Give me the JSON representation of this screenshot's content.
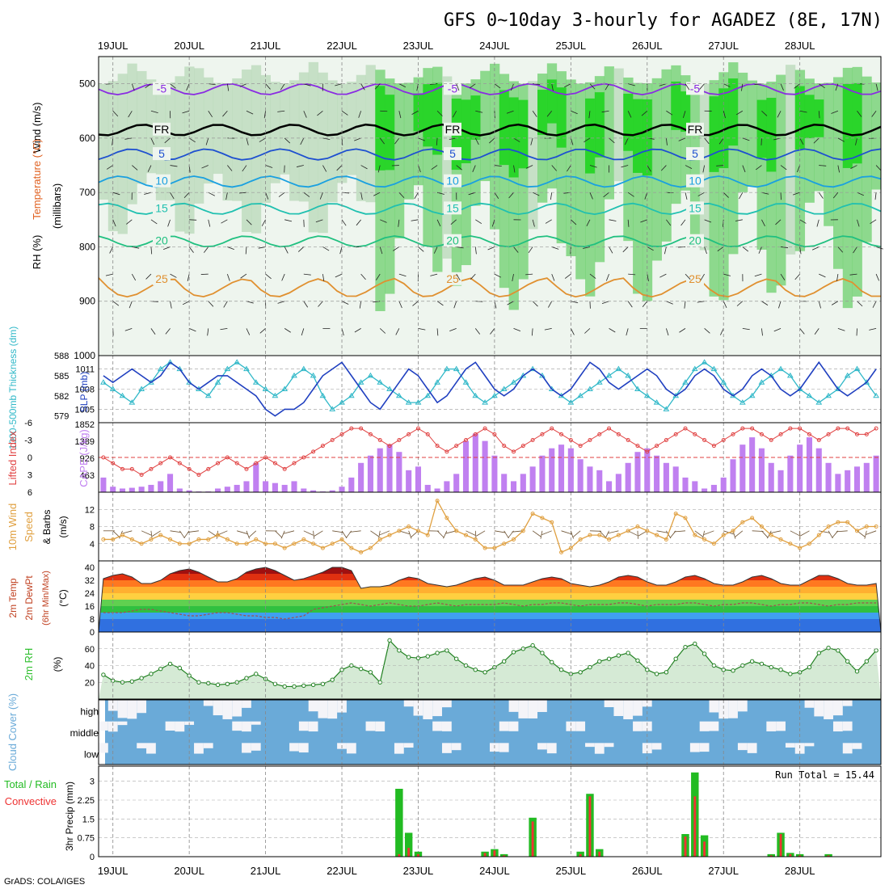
{
  "title": "GFS 0~10day 3-hourly for AGADEZ (8E, 17N)",
  "footer": "GrADS: COLA/IGES",
  "dates": [
    "19JUL",
    "20JUL",
    "21JUL",
    "22JUL",
    "23JUL",
    "24JUL",
    "25JUL",
    "26JUL",
    "27JUL",
    "28JUL"
  ],
  "colors": {
    "rh_green": "#1fc21f",
    "cape": "#c080f0",
    "thickness": "#30b8c8",
    "slp": "#2040c0",
    "lifted": "#e04040",
    "wind10": "#e0a040",
    "rh2m": "#30c030",
    "cloud": "#6aaad8",
    "precip_total": "#22bb22",
    "precip_conv": "#ee3333"
  },
  "chart_data": [
    {
      "type": "heatmap",
      "panel": "upper-air",
      "ylabel_parts": {
        "rh": "RH (%)",
        "temp": "Temperature (°C)",
        "wind": "Wind (m/s)"
      },
      "yunit": "(millibars)",
      "ylim": [
        1000,
        450
      ],
      "yticks": [
        500,
        600,
        700,
        800,
        900,
        1000
      ],
      "isotherms": [
        {
          "label": "-5",
          "color": "#8a2be2",
          "level": 510
        },
        {
          "label": "FR",
          "color": "#000000",
          "level": 585
        },
        {
          "label": "5",
          "color": "#1e50d0",
          "level": 630
        },
        {
          "label": "10",
          "color": "#1aa0e0",
          "level": 680
        },
        {
          "label": "15",
          "color": "#20c0b0",
          "level": 730
        },
        {
          "label": "20",
          "color": "#20c080",
          "level": 790
        },
        {
          "label": "25",
          "color": "#e09030",
          "level": 860
        }
      ]
    },
    {
      "type": "line",
      "panel": "thickness-slp",
      "ylabel_left": "1000-500mb Thickness (dm)",
      "ylabel_right": "SLP (mb)",
      "left_ticks": [
        579,
        582,
        585,
        588
      ],
      "right_ticks": [
        1005,
        1008,
        1011
      ],
      "series": [
        {
          "name": "Thickness",
          "values": [
            584,
            583,
            582,
            581,
            583,
            584,
            586,
            587,
            586,
            584,
            583,
            582,
            584,
            586,
            587,
            586,
            584,
            583,
            582,
            583,
            585,
            586,
            585,
            582,
            580,
            581,
            582,
            584,
            585,
            584,
            583,
            582,
            581,
            581,
            582,
            584,
            586,
            586,
            584,
            582,
            581,
            582,
            583,
            584,
            585,
            586,
            585,
            583,
            582,
            581,
            582,
            583,
            584,
            585,
            586,
            585,
            583,
            582,
            581,
            580,
            582,
            584,
            586,
            587,
            586,
            584,
            582,
            581,
            582,
            584,
            585,
            586,
            585,
            583,
            582,
            581,
            582,
            583,
            585,
            586,
            584,
            582
          ]
        },
        {
          "name": "SLP",
          "values": [
            1010,
            1009,
            1010,
            1011,
            1010,
            1009,
            1010,
            1012,
            1011,
            1009,
            1008,
            1009,
            1010,
            1010,
            1009,
            1008,
            1007,
            1005,
            1004,
            1005,
            1005,
            1006,
            1008,
            1010,
            1011,
            1012,
            1010,
            1008,
            1006,
            1005,
            1007,
            1009,
            1011,
            1010,
            1008,
            1006,
            1007,
            1009,
            1011,
            1012,
            1010,
            1008,
            1007,
            1008,
            1010,
            1011,
            1010,
            1008,
            1007,
            1008,
            1010,
            1012,
            1011,
            1009,
            1008,
            1009,
            1010,
            1011,
            1010,
            1008,
            1007,
            1008,
            1010,
            1011,
            1010,
            1008,
            1007,
            1008,
            1010,
            1011,
            1010,
            1008,
            1007,
            1008,
            1010,
            1012,
            1010,
            1008,
            1007,
            1008,
            1009,
            1011
          ]
        }
      ]
    },
    {
      "type": "bar",
      "panel": "lifted-cape",
      "ylabel_left": "Lifted Index",
      "ylabel_right": "CAPE (J/kg)",
      "li_ticks": [
        -6,
        -3,
        0,
        3,
        6
      ],
      "cape_ticks": [
        463,
        926,
        1389,
        1852
      ],
      "series": [
        {
          "name": "CAPE",
          "values": [
            400,
            150,
            100,
            120,
            150,
            200,
            300,
            500,
            100,
            50,
            20,
            20,
            100,
            150,
            200,
            300,
            800,
            300,
            250,
            200,
            300,
            100,
            50,
            20,
            50,
            150,
            400,
            800,
            1000,
            1200,
            1300,
            1100,
            600,
            700,
            200,
            100,
            300,
            500,
            1400,
            1600,
            1400,
            1000,
            500,
            300,
            500,
            700,
            1000,
            1200,
            1300,
            1200,
            900,
            700,
            600,
            300,
            500,
            800,
            1100,
            1200,
            1000,
            800,
            700,
            400,
            300,
            100,
            200,
            400,
            900,
            1300,
            1500,
            1200,
            800,
            600,
            1000,
            1300,
            1500,
            1200,
            800,
            500,
            600,
            700,
            800,
            1000
          ]
        },
        {
          "name": "Lifted Index",
          "values": [
            0,
            1,
            2,
            2,
            3,
            2,
            1,
            0,
            1,
            2,
            3,
            2,
            1,
            0,
            1,
            2,
            1,
            0,
            1,
            2,
            1,
            0,
            -1,
            -2,
            -3,
            -4,
            -5,
            -5,
            -4,
            -3,
            -2,
            -3,
            -4,
            -5,
            -4,
            -2,
            -1,
            -2,
            -3,
            -4,
            -5,
            -4,
            -2,
            -1,
            -2,
            -3,
            -4,
            -5,
            -4,
            -3,
            -2,
            -3,
            -4,
            -5,
            -4,
            -3,
            -2,
            -1,
            -2,
            -3,
            -4,
            -5,
            -4,
            -3,
            -2,
            -3,
            -4,
            -5,
            -5,
            -4,
            -3,
            -4,
            -5,
            -5,
            -4,
            -3,
            -4,
            -5,
            -5,
            -4,
            -4,
            -5
          ]
        }
      ]
    },
    {
      "type": "line",
      "panel": "wind10m",
      "ylabel": "10m Wind Speed (m/s) & Barbs",
      "ylim": [
        0,
        16
      ],
      "yticks": [
        4,
        8,
        12
      ],
      "series": [
        {
          "name": "10m Wind Speed",
          "values": [
            5,
            5,
            6,
            5,
            4,
            5,
            6,
            5,
            4,
            4,
            5,
            5,
            6,
            5,
            4,
            4,
            5,
            4,
            4,
            3,
            4,
            5,
            4,
            3,
            4,
            5,
            3,
            2,
            3,
            5,
            6,
            7,
            8,
            7,
            6,
            14,
            10,
            7,
            6,
            5,
            3,
            3,
            4,
            5,
            7,
            11,
            10,
            9,
            2,
            3,
            5,
            6,
            6,
            5,
            6,
            7,
            8,
            7,
            6,
            5,
            11,
            10,
            6,
            5,
            4,
            6,
            7,
            9,
            10,
            8,
            6,
            5,
            4,
            3,
            4,
            6,
            8,
            9,
            9,
            7,
            8,
            8
          ]
        }
      ]
    },
    {
      "type": "area",
      "panel": "temp2m",
      "ylabel": "2m Temp 2m DewPt (6hr Min/Max) (°C)",
      "yticks": [
        40,
        32,
        24,
        16,
        8,
        0
      ],
      "series": [
        {
          "name": "2m Temp",
          "values": [
            33,
            35,
            36,
            34,
            30,
            30,
            32,
            36,
            38,
            39,
            37,
            34,
            31,
            31,
            33,
            37,
            39,
            40,
            38,
            35,
            32,
            33,
            35,
            37,
            40,
            40,
            38,
            27,
            28,
            28,
            29,
            32,
            34,
            33,
            30,
            29,
            28,
            29,
            31,
            33,
            34,
            32,
            29,
            29,
            29,
            31,
            33,
            34,
            33,
            30,
            29,
            28,
            29,
            31,
            34,
            35,
            34,
            31,
            29,
            29,
            31,
            34,
            35,
            33,
            30,
            29,
            29,
            31,
            34,
            35,
            33,
            30,
            29,
            29,
            32,
            35,
            35,
            33,
            30,
            29,
            29,
            30
          ]
        },
        {
          "name": "2m DewPt",
          "values": [
            12,
            12,
            12,
            13,
            14,
            14,
            13,
            12,
            11,
            10,
            10,
            11,
            12,
            12,
            11,
            10,
            10,
            9,
            9,
            8,
            9,
            10,
            14,
            15,
            16,
            17,
            18,
            17,
            16,
            17,
            18,
            17,
            16,
            16,
            17,
            18,
            17,
            16,
            17,
            17,
            17,
            17,
            18,
            17,
            16,
            17,
            17,
            18,
            18,
            17,
            16,
            17,
            17,
            17,
            18,
            18,
            17,
            16,
            17,
            17,
            17,
            18,
            18,
            17,
            16,
            17,
            17,
            18,
            18,
            17,
            16,
            17,
            17,
            18,
            18,
            17,
            16,
            17,
            17,
            18,
            18,
            18
          ]
        }
      ]
    },
    {
      "type": "area",
      "panel": "rh2m",
      "ylabel": "2m RH (%)",
      "ylim": [
        0,
        80
      ],
      "yticks": [
        20,
        40,
        60
      ],
      "series": [
        {
          "name": "2m RH",
          "values": [
            29,
            22,
            20,
            21,
            25,
            30,
            36,
            42,
            37,
            28,
            20,
            19,
            17,
            18,
            20,
            25,
            30,
            24,
            18,
            15,
            15,
            16,
            17,
            18,
            23,
            35,
            40,
            36,
            32,
            20,
            70,
            58,
            50,
            49,
            51,
            55,
            58,
            48,
            40,
            35,
            32,
            38,
            45,
            56,
            60,
            64,
            55,
            44,
            35,
            30,
            32,
            38,
            45,
            48,
            52,
            55,
            46,
            35,
            30,
            32,
            48,
            62,
            66,
            54,
            40,
            35,
            34,
            40,
            45,
            42,
            38,
            35,
            30,
            32,
            38,
            55,
            61,
            58,
            45,
            33,
            45,
            58
          ]
        }
      ]
    },
    {
      "type": "heatmap",
      "panel": "cloud",
      "ylabel": "Cloud Cover (%)",
      "rows": [
        "high",
        "middle",
        "low"
      ]
    },
    {
      "type": "bar",
      "panel": "precip",
      "ylabel": "3hr Precip (mm)",
      "legend_total": "Total / Rain",
      "legend_conv": "Convective",
      "run_total_label": "Run Total = 15.44",
      "ylim": [
        0,
        3.6
      ],
      "yticks": [
        0,
        0.75,
        1.5,
        2.25,
        3
      ],
      "series": [
        {
          "name": "Total",
          "values": [
            0,
            0,
            0,
            0,
            0,
            0,
            0,
            0,
            0,
            0,
            0,
            0,
            0,
            0,
            0,
            0,
            0,
            0,
            0,
            0,
            0,
            0,
            0,
            0,
            0,
            0,
            0,
            0,
            0,
            0,
            0,
            2.7,
            0.95,
            0.2,
            0,
            0,
            0,
            0,
            0,
            0,
            0.2,
            0.3,
            0.1,
            0,
            0,
            1.55,
            0,
            0,
            0,
            0,
            0.2,
            2.5,
            0.3,
            0,
            0,
            0,
            0,
            0,
            0,
            0,
            0,
            0.9,
            3.35,
            0.85,
            0,
            0,
            0,
            0,
            0,
            0,
            0.1,
            0.95,
            0.15,
            0.1,
            0,
            0,
            0.1,
            0,
            0,
            0,
            0,
            0
          ]
        },
        {
          "name": "Convective",
          "values": [
            0,
            0,
            0,
            0,
            0,
            0,
            0,
            0,
            0,
            0,
            0,
            0,
            0,
            0,
            0,
            0,
            0,
            0,
            0,
            0,
            0,
            0,
            0,
            0,
            0,
            0,
            0,
            0,
            0,
            0,
            0,
            0.1,
            0.35,
            0.1,
            0,
            0,
            0,
            0,
            0,
            0,
            0.15,
            0.25,
            0.05,
            0,
            0,
            1.4,
            0,
            0,
            0,
            0,
            0.1,
            2.4,
            0.2,
            0,
            0,
            0,
            0,
            0,
            0,
            0,
            0,
            0.8,
            2.4,
            0.6,
            0,
            0,
            0,
            0,
            0,
            0,
            0.05,
            0.9,
            0.1,
            0.05,
            0,
            0,
            0.05,
            0,
            0,
            0,
            0,
            0
          ]
        }
      ]
    }
  ]
}
